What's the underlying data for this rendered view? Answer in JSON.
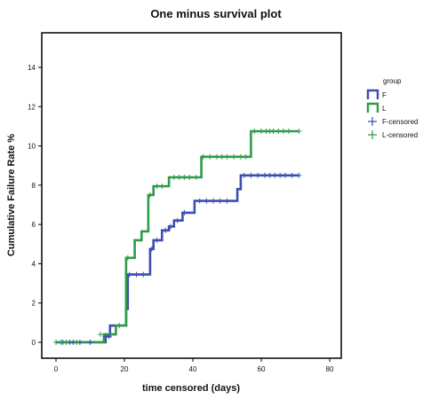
{
  "chart_data": {
    "type": "line",
    "title": "One minus survival plot",
    "xlabel": "time censored (days)",
    "ylabel": "Cumulative Failure Rate %",
    "xlim": [
      0,
      80
    ],
    "ylim": [
      0,
      15
    ],
    "xticks": [
      "0",
      "20",
      "40",
      "60",
      "80"
    ],
    "yticks": [
      "0",
      "2",
      "4",
      "6",
      "8",
      "10",
      "12",
      "14"
    ],
    "xtick_values": [
      0,
      20,
      40,
      60,
      80
    ],
    "ytick_values": [
      0,
      2,
      4,
      6,
      8,
      10,
      12,
      14
    ],
    "grid": false,
    "legend": {
      "title": "group",
      "placement": "right"
    },
    "series": [
      {
        "name": "F",
        "color": "#3b4fb0",
        "step_points": [
          [
            0,
            0
          ],
          [
            14.5,
            0
          ],
          [
            14.5,
            0.3
          ],
          [
            15.8,
            0.3
          ],
          [
            15.8,
            0.85
          ],
          [
            18.5,
            0.85
          ],
          [
            18.5,
            0.85
          ],
          [
            20.5,
            0.85
          ],
          [
            20.5,
            1.7
          ],
          [
            21,
            1.7
          ],
          [
            21,
            3.45
          ],
          [
            27.5,
            3.45
          ],
          [
            27.5,
            4.75
          ],
          [
            28.5,
            4.75
          ],
          [
            28.5,
            5.2
          ],
          [
            31,
            5.2
          ],
          [
            31,
            5.7
          ],
          [
            33,
            5.7
          ],
          [
            33,
            5.9
          ],
          [
            34.5,
            5.9
          ],
          [
            34.5,
            6.2
          ],
          [
            37,
            6.2
          ],
          [
            37,
            6.6
          ],
          [
            40.5,
            6.6
          ],
          [
            40.5,
            7.2
          ],
          [
            53,
            7.2
          ],
          [
            53,
            7.8
          ],
          [
            54,
            7.8
          ],
          [
            54,
            8.5
          ],
          [
            71,
            8.5
          ]
        ],
        "censor_points": [
          [
            0,
            0
          ],
          [
            2,
            0
          ],
          [
            4,
            0
          ],
          [
            5,
            0
          ],
          [
            7,
            0
          ],
          [
            10,
            0
          ],
          [
            14.5,
            0.3
          ],
          [
            15.5,
            0.3
          ],
          [
            21.5,
            3.45
          ],
          [
            23.5,
            3.45
          ],
          [
            25.5,
            3.45
          ],
          [
            28,
            4.75
          ],
          [
            29.5,
            5.2
          ],
          [
            32,
            5.7
          ],
          [
            33.5,
            5.9
          ],
          [
            35.5,
            6.2
          ],
          [
            37.5,
            6.6
          ],
          [
            42,
            7.2
          ],
          [
            44,
            7.2
          ],
          [
            46,
            7.2
          ],
          [
            48,
            7.2
          ],
          [
            50,
            7.2
          ],
          [
            55,
            8.5
          ],
          [
            57,
            8.5
          ],
          [
            59,
            8.5
          ],
          [
            61,
            8.5
          ],
          [
            62.5,
            8.5
          ],
          [
            64,
            8.5
          ],
          [
            65.5,
            8.5
          ],
          [
            67,
            8.5
          ],
          [
            69,
            8.5
          ],
          [
            71,
            8.5
          ]
        ]
      },
      {
        "name": "L",
        "color": "#2e9b4a",
        "step_points": [
          [
            0,
            0
          ],
          [
            14,
            0
          ],
          [
            14,
            0.4
          ],
          [
            16.5,
            0.4
          ],
          [
            16.5,
            0.4
          ],
          [
            17.5,
            0.4
          ],
          [
            17.5,
            0.85
          ],
          [
            20,
            0.85
          ],
          [
            20,
            0.85
          ],
          [
            20.5,
            0.85
          ],
          [
            20.5,
            4.3
          ],
          [
            23,
            4.3
          ],
          [
            23,
            5.2
          ],
          [
            25,
            5.2
          ],
          [
            25,
            5.65
          ],
          [
            27,
            5.65
          ],
          [
            27,
            7.5
          ],
          [
            28.5,
            7.5
          ],
          [
            28.5,
            7.95
          ],
          [
            33,
            7.95
          ],
          [
            33,
            8.4
          ],
          [
            41,
            8.4
          ],
          [
            41,
            8.4
          ],
          [
            42.5,
            8.4
          ],
          [
            42.5,
            9.45
          ],
          [
            57,
            9.45
          ],
          [
            57,
            10.75
          ],
          [
            71,
            10.75
          ]
        ],
        "censor_points": [
          [
            0,
            0
          ],
          [
            1.5,
            0
          ],
          [
            3,
            0
          ],
          [
            6,
            0
          ],
          [
            13,
            0.4
          ],
          [
            18.5,
            0.85
          ],
          [
            21,
            4.3
          ],
          [
            27.5,
            7.5
          ],
          [
            29.5,
            7.95
          ],
          [
            31,
            7.95
          ],
          [
            34.5,
            8.4
          ],
          [
            36,
            8.4
          ],
          [
            37.5,
            8.4
          ],
          [
            39,
            8.4
          ],
          [
            41,
            8.4
          ],
          [
            43,
            9.45
          ],
          [
            45,
            9.45
          ],
          [
            47,
            9.45
          ],
          [
            48.5,
            9.45
          ],
          [
            50,
            9.45
          ],
          [
            52,
            9.45
          ],
          [
            54,
            9.45
          ],
          [
            55.5,
            9.45
          ],
          [
            58,
            10.75
          ],
          [
            60,
            10.75
          ],
          [
            61.5,
            10.75
          ],
          [
            62.5,
            10.75
          ],
          [
            63.5,
            10.75
          ],
          [
            65,
            10.75
          ],
          [
            66.5,
            10.75
          ],
          [
            68,
            10.75
          ],
          [
            71,
            10.75
          ]
        ]
      }
    ],
    "legend_entries": [
      {
        "label": "F",
        "kind": "line",
        "color": "#3b4fb0"
      },
      {
        "label": "L",
        "kind": "line",
        "color": "#2e9b4a"
      },
      {
        "label": "F-censored",
        "kind": "cross",
        "color": "#3b4fb0"
      },
      {
        "label": "L-censored",
        "kind": "cross",
        "color": "#2e9b4a"
      }
    ]
  }
}
